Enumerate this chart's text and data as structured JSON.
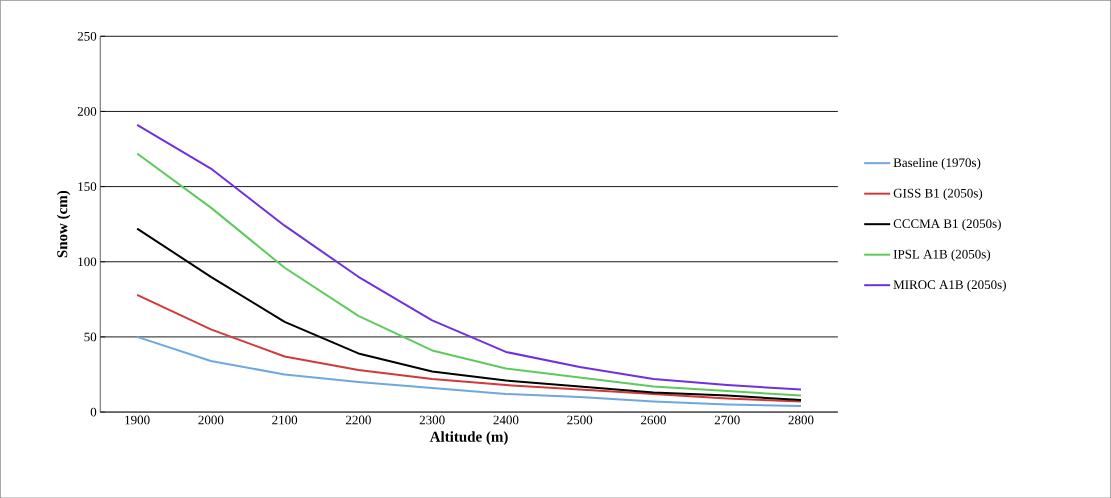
{
  "chart_data": {
    "type": "line",
    "xlabel": "Altitude (m)",
    "ylabel": "Snow (cm)",
    "categories": [
      "1900",
      "2000",
      "2100",
      "2200",
      "2300",
      "2400",
      "2500",
      "2600",
      "2700",
      "2800"
    ],
    "series": [
      {
        "name": "Baseline (1970s)",
        "color": "#6fa8e0",
        "values": [
          50,
          34,
          25,
          20,
          16,
          12,
          10,
          7,
          5,
          4
        ]
      },
      {
        "name": "GISS B1 (2050s)",
        "color": "#d03a3a",
        "values": [
          78,
          55,
          37,
          28,
          22,
          18,
          15,
          12,
          9,
          7
        ]
      },
      {
        "name": "CCCMA B1 (2050s)",
        "color": "#000000",
        "values": [
          122,
          90,
          60,
          39,
          27,
          21,
          17,
          13,
          11,
          8
        ]
      },
      {
        "name": "IPSL A1B (2050s)",
        "color": "#5ccb5c",
        "values": [
          172,
          136,
          96,
          64,
          41,
          29,
          23,
          17,
          14,
          11
        ]
      },
      {
        "name": "MIROC A1B (2050s)",
        "color": "#7030e0",
        "values": [
          191,
          162,
          124,
          90,
          61,
          40,
          30,
          22,
          18,
          15
        ]
      }
    ],
    "ylim": [
      0,
      250
    ],
    "yticks": [
      0,
      50,
      100,
      150,
      200,
      250
    ],
    "grid": "y",
    "legend": "right",
    "marker": "none",
    "line_style": "solid"
  }
}
